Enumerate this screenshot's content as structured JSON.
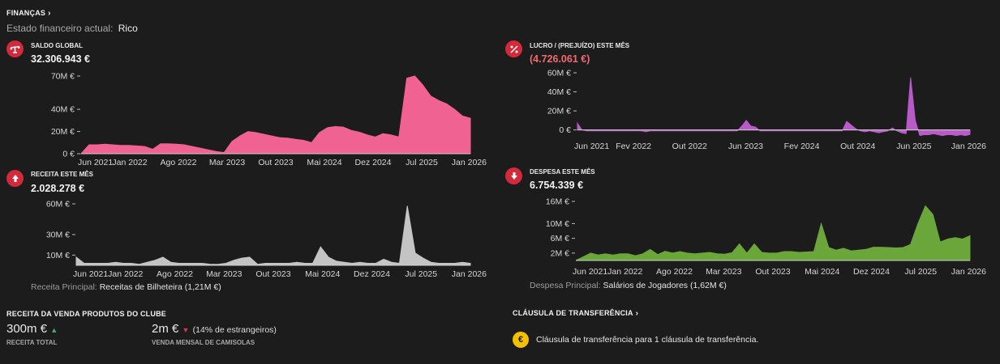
{
  "header": {
    "title": "FINANÇAS",
    "state_label": "Estado financeiro actual:",
    "state_value": "Rico"
  },
  "panels": {
    "saldo": {
      "label": "SALDO GLOBAL",
      "value": "32.306.943 €",
      "icon": "scale-icon",
      "color": "#f06292"
    },
    "lucro": {
      "label": "LUCRO / (PREJUÍZO) ESTE MÊS",
      "value": "(4.726.061 €)",
      "icon": "percent-icon",
      "color": "#b85bc9"
    },
    "receita": {
      "label": "RECEITA ESTE MÊS",
      "value": "2.028.278 €",
      "icon": "arrow-up-icon",
      "color": "#c4c4c4",
      "footer_label": "Receita Principal:",
      "footer_value": "Receitas de Bilheteira (1,21M €)"
    },
    "despesa": {
      "label": "DESPESA ESTE MÊS",
      "value": "6.754.339 €",
      "icon": "arrow-down-icon",
      "color": "#6aa63a",
      "footer_label": "Despesa Principal:",
      "footer_value": "Salários de Jogadores (1,62M €)"
    }
  },
  "merch": {
    "title": "RECEITA DA VENDA PRODUTOS DO CLUBE",
    "total_value": "300m €",
    "total_label": "RECEITA TOTAL",
    "shirts_value": "2m €",
    "shirts_note": "(14% de estrangeiros)",
    "shirts_label": "VENDA MENSAL DE CAMISOLAS"
  },
  "clause": {
    "title": "CLÁUSULA DE TRANSFERÊNCIA",
    "text": "Cláusula de transferência para 1 cláusula de transferência.",
    "coin": "€"
  },
  "chart_data": [
    {
      "type": "area",
      "name": "saldo",
      "x_labels": [
        "Jun 2021",
        "Jan 2022",
        "Ago 2022",
        "Mar 2023",
        "Out 2023",
        "Mai 2024",
        "Dez 2024",
        "Jul 2025",
        "Jan 2026"
      ],
      "y_ticks": [
        "70M €",
        "40M €",
        "20M €",
        "0 €"
      ],
      "y_tick_values": [
        70,
        40,
        20,
        0
      ],
      "ylim": [
        0,
        70
      ],
      "values": [
        0,
        8,
        8,
        8.5,
        8,
        7.5,
        7.5,
        7,
        6.5,
        4,
        9,
        9,
        8.5,
        8,
        6.5,
        5,
        3.5,
        2,
        1,
        11,
        16,
        20,
        19,
        17.5,
        16,
        14.5,
        14,
        13,
        12,
        10,
        19,
        23.5,
        24.5,
        24,
        21,
        19.5,
        17,
        15,
        18,
        17,
        15,
        68,
        70,
        62,
        52,
        48,
        45,
        40,
        34,
        32
      ],
      "color": "#f06292"
    },
    {
      "type": "area",
      "name": "lucro",
      "x_labels": [
        "Jun 2021",
        "Fev 2022",
        "Out 2022",
        "Jun 2023",
        "Fev 2024",
        "Out 2024",
        "Jun 2025",
        "Jan 2026"
      ],
      "y_ticks": [
        "60M €",
        "40M €",
        "20M €",
        "0 €"
      ],
      "y_tick_values": [
        60,
        40,
        20,
        0
      ],
      "ylim": [
        -8,
        60
      ],
      "values": [
        7,
        0,
        -1,
        -1,
        -1,
        -1,
        -1,
        -1,
        -1,
        -1,
        -1,
        -1,
        -1,
        -1,
        -1,
        -2,
        -1,
        -1,
        -1,
        -1,
        -1,
        -1,
        -1,
        -1,
        -1,
        -1,
        -1,
        -1,
        -1,
        -1,
        -1,
        -1,
        -1,
        -1,
        -1,
        -1,
        4,
        10,
        4,
        3,
        -1,
        -1,
        -1,
        -1,
        -1,
        -1,
        -1,
        -1,
        -1,
        -1,
        -1,
        -1,
        -1,
        -1,
        -1,
        -1,
        -1,
        -1,
        -1,
        9,
        5,
        1,
        -1,
        -2,
        -1,
        -2,
        -3,
        -2,
        -1,
        2,
        -1,
        -3,
        -4,
        55,
        10,
        -6,
        -5,
        -5,
        -4,
        -5,
        -6,
        -5,
        -5,
        -6,
        -5,
        -6,
        -4.7
      ],
      "color": "#b85bc9"
    },
    {
      "type": "area",
      "name": "receita",
      "x_labels": [
        "Jun 2021",
        "Jan 2022",
        "Ago 2022",
        "Mar 2023",
        "Out 2023",
        "Mai 2024",
        "Dez 2024",
        "Jul 2025",
        "Jan 2026"
      ],
      "y_ticks": [
        "60M €",
        "30M €",
        "10M €"
      ],
      "y_tick_values": [
        60,
        30,
        10
      ],
      "ylim": [
        0,
        60
      ],
      "values": [
        8,
        2,
        2,
        2,
        2,
        3,
        2,
        2,
        1,
        3,
        5,
        8,
        3,
        2,
        2,
        2,
        2,
        1,
        1,
        2,
        5,
        7,
        8,
        1,
        2,
        2,
        2,
        2,
        3,
        2,
        2,
        18,
        8,
        4,
        3,
        2,
        3,
        2,
        2,
        6,
        3,
        2,
        58,
        12,
        7,
        3,
        2,
        2,
        2,
        3,
        2
      ],
      "color": "#c4c4c4"
    },
    {
      "type": "area",
      "name": "despesa",
      "x_labels": [
        "Jun 2021",
        "Jan 2022",
        "Ago 2022",
        "Mar 2023",
        "Out 2023",
        "Mai 2024",
        "Dez 2024",
        "Jul 2025",
        "Jan 2026"
      ],
      "y_ticks": [
        "16M €",
        "10M €",
        "6M €",
        "2M €"
      ],
      "y_tick_values": [
        16,
        10,
        6,
        2
      ],
      "ylim": [
        0,
        16
      ],
      "values": [
        0,
        1,
        2,
        1.5,
        1.8,
        1.5,
        1.8,
        1.8,
        1.3,
        1.8,
        3,
        1.6,
        2.5,
        2,
        2.4,
        2,
        1.8,
        2,
        2.2,
        1.8,
        1.7,
        2.1,
        4.5,
        2,
        4.5,
        2.2,
        2,
        2,
        2.4,
        2.4,
        2.2,
        2.3,
        2.4,
        10,
        3.5,
        2.8,
        3.3,
        2.6,
        2.8,
        3,
        3.6,
        3.6,
        3.5,
        3.4,
        3.5,
        4.3,
        10,
        14.8,
        12.5,
        5,
        5.8,
        6.2,
        5.8,
        6.7
      ],
      "color": "#6aa63a"
    }
  ]
}
